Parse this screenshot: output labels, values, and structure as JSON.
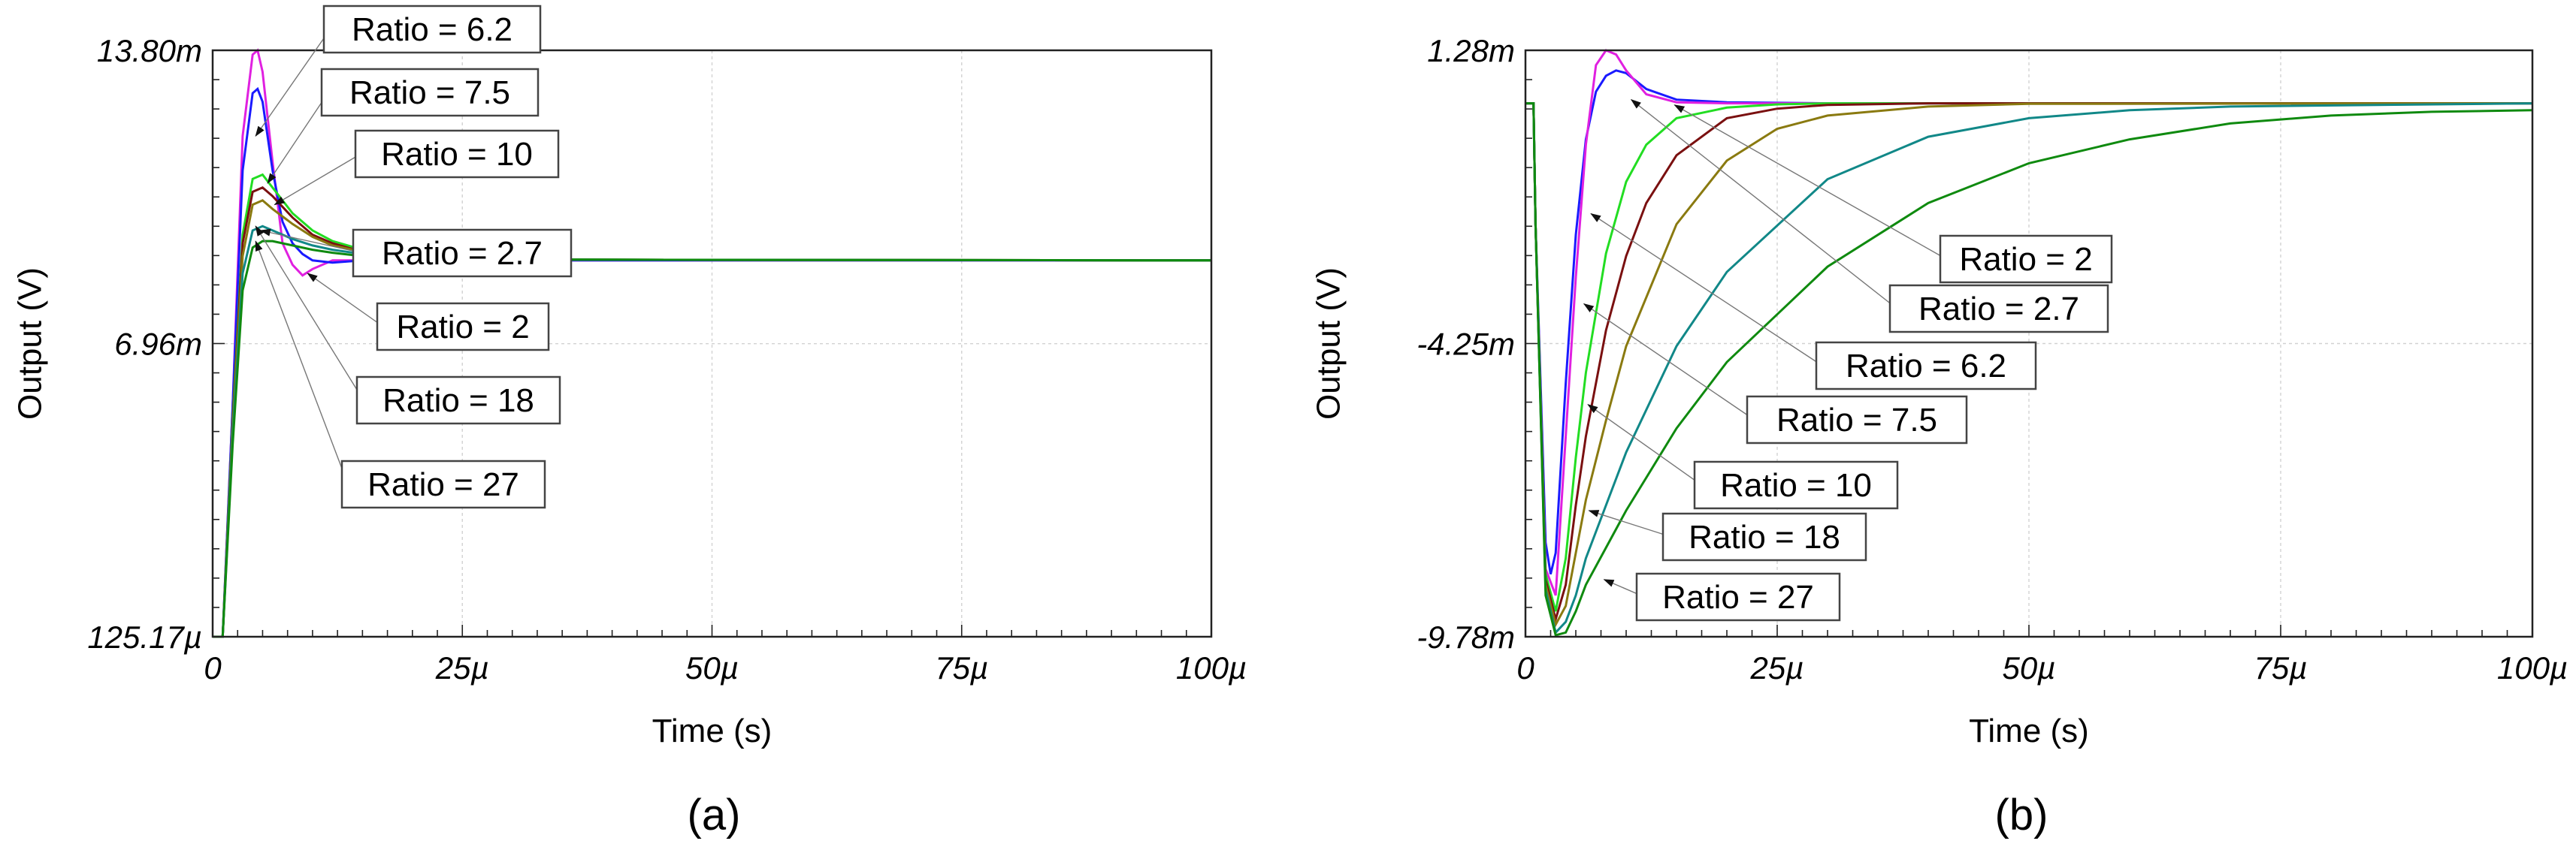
{
  "chart_data": [
    {
      "type": "line",
      "panel": "(a)",
      "xlabel": "Time (s)",
      "ylabel": "Output (V)",
      "xlim": [
        0,
        100
      ],
      "ylim": [
        0.12517,
        13.8
      ],
      "x_ticks": [
        0,
        25,
        50,
        75,
        100
      ],
      "x_tick_labels": [
        "0",
        "25µ",
        "50µ",
        "75µ",
        "100µ"
      ],
      "y_ticks": [
        0.12517,
        6.96,
        13.8
      ],
      "y_tick_labels": [
        "125.17µ",
        "6.96m",
        "13.80m"
      ],
      "grid": true,
      "series": [
        {
          "name": "Ratio = 2",
          "color": "#e020e0",
          "x": [
            0,
            1,
            2,
            3,
            4,
            4.5,
            5,
            6,
            7,
            8,
            9,
            10,
            12,
            15,
            20,
            30,
            100
          ],
          "y": [
            0.125,
            0.125,
            5.5,
            11.8,
            13.7,
            13.8,
            13.3,
            11.2,
            9.3,
            8.8,
            8.55,
            8.7,
            8.9,
            8.9,
            8.9,
            8.9,
            8.9
          ]
        },
        {
          "name": "Ratio = 2.7",
          "color": "#1a1aff",
          "x": [
            0,
            1,
            2,
            3,
            4,
            4.5,
            5,
            6,
            7,
            8,
            9,
            10,
            12,
            15,
            20,
            30,
            100
          ],
          "y": [
            0.125,
            0.125,
            5.5,
            11.0,
            12.8,
            12.9,
            12.6,
            11.0,
            9.8,
            9.3,
            9.05,
            8.9,
            8.85,
            8.9,
            8.9,
            8.9,
            8.9
          ]
        },
        {
          "name": "Ratio = 6.2",
          "color": "#22dd22",
          "x": [
            0,
            1,
            2,
            3,
            4,
            5,
            6,
            8,
            10,
            12,
            15,
            20,
            30,
            100
          ],
          "y": [
            0.125,
            0.125,
            5.2,
            9.5,
            10.8,
            10.9,
            10.6,
            10.0,
            9.6,
            9.35,
            9.15,
            9.0,
            8.92,
            8.9
          ]
        },
        {
          "name": "Ratio = 7.5",
          "color": "#7a1010",
          "x": [
            0,
            1,
            2,
            3,
            4,
            5,
            6,
            8,
            10,
            12,
            15,
            20,
            30,
            100
          ],
          "y": [
            0.125,
            0.125,
            5.1,
            9.3,
            10.5,
            10.6,
            10.4,
            9.9,
            9.5,
            9.3,
            9.1,
            9.0,
            8.92,
            8.9
          ]
        },
        {
          "name": "Ratio = 10",
          "color": "#8a7a10",
          "x": [
            0,
            1,
            2,
            3,
            4,
            5,
            6,
            8,
            10,
            12,
            15,
            20,
            30,
            100
          ],
          "y": [
            0.125,
            0.125,
            5.0,
            9.0,
            10.2,
            10.3,
            10.1,
            9.75,
            9.45,
            9.25,
            9.1,
            9.0,
            8.92,
            8.9
          ]
        },
        {
          "name": "Ratio = 18",
          "color": "#118888",
          "x": [
            0,
            1,
            2,
            3,
            4,
            5,
            6,
            8,
            10,
            12,
            15,
            20,
            30,
            100
          ],
          "y": [
            0.125,
            0.125,
            4.8,
            8.6,
            9.6,
            9.7,
            9.6,
            9.4,
            9.25,
            9.15,
            9.05,
            8.98,
            8.92,
            8.9
          ]
        },
        {
          "name": "Ratio = 27",
          "color": "#0f8a0f",
          "x": [
            0,
            1,
            2,
            3,
            4,
            5,
            6,
            8,
            10,
            12,
            15,
            20,
            30,
            100
          ],
          "y": [
            0.125,
            0.125,
            4.6,
            8.2,
            9.2,
            9.35,
            9.35,
            9.25,
            9.15,
            9.08,
            9.0,
            8.95,
            8.92,
            8.9
          ]
        }
      ],
      "annotations": [
        {
          "text": "Ratio = 6.2",
          "target_x": 4.3,
          "target_y": 11.8
        },
        {
          "text": "Ratio = 7.5",
          "target_x": 5.5,
          "target_y": 10.7
        },
        {
          "text": "Ratio = 10",
          "target_x": 6.2,
          "target_y": 10.2
        },
        {
          "text": "Ratio = 2.7",
          "target_x": 4.8,
          "target_y": 9.6
        },
        {
          "text": "Ratio = 2",
          "target_x": 9.5,
          "target_y": 8.6
        },
        {
          "text": "Ratio = 18",
          "target_x": 4.3,
          "target_y": 9.7
        },
        {
          "text": "Ratio = 27",
          "target_x": 4.3,
          "target_y": 9.35
        }
      ]
    },
    {
      "type": "line",
      "panel": "(b)",
      "xlabel": "Time (s)",
      "ylabel": "Output (V)",
      "xlim": [
        0,
        100
      ],
      "ylim": [
        -9.78,
        1.28
      ],
      "x_ticks": [
        0,
        25,
        50,
        75,
        100
      ],
      "x_tick_labels": [
        "0",
        "25µ",
        "50µ",
        "75µ",
        "100µ"
      ],
      "y_ticks": [
        -9.78,
        -4.25,
        1.28
      ],
      "y_tick_labels": [
        "-9.78m",
        "-4.25m",
        "1.28m"
      ],
      "grid": true,
      "series": [
        {
          "name": "Ratio = 2",
          "color": "#1a1aff",
          "x": [
            0,
            0.8,
            1,
            2,
            2.5,
            3,
            4,
            5,
            6,
            7,
            8,
            9,
            10,
            12,
            15,
            20,
            30,
            100
          ],
          "y": [
            0.28,
            0.28,
            -2.0,
            -8.0,
            -8.6,
            -8.2,
            -5.0,
            -2.2,
            -0.4,
            0.5,
            0.8,
            0.9,
            0.85,
            0.55,
            0.35,
            0.3,
            0.28,
            0.28
          ]
        },
        {
          "name": "Ratio = 2.7",
          "color": "#e020e0",
          "x": [
            0,
            0.8,
            1,
            2,
            3,
            4,
            5,
            6,
            7,
            8,
            9,
            10,
            12,
            15,
            20,
            100
          ],
          "y": [
            0.28,
            0.28,
            -2.0,
            -8.5,
            -9.0,
            -6.0,
            -3.0,
            -0.5,
            1.0,
            1.28,
            1.2,
            0.9,
            0.45,
            0.3,
            0.28,
            0.28
          ]
        },
        {
          "name": "Ratio = 6.2",
          "color": "#22dd22",
          "x": [
            0,
            0.8,
            1,
            2,
            3,
            4,
            5,
            6,
            8,
            10,
            12,
            15,
            20,
            25,
            30,
            40,
            100
          ],
          "y": [
            0.28,
            0.28,
            -2.0,
            -8.6,
            -9.3,
            -8.3,
            -6.4,
            -4.8,
            -2.55,
            -1.2,
            -0.5,
            0.0,
            0.2,
            0.26,
            0.28,
            0.28,
            0.28
          ]
        },
        {
          "name": "Ratio = 7.5",
          "color": "#7a1010",
          "x": [
            0,
            0.8,
            1,
            2,
            3,
            4,
            5,
            6,
            8,
            10,
            12,
            15,
            20,
            25,
            30,
            40,
            100
          ],
          "y": [
            0.28,
            0.28,
            -2.0,
            -8.7,
            -9.45,
            -8.8,
            -7.3,
            -6.0,
            -4.0,
            -2.6,
            -1.6,
            -0.7,
            0.0,
            0.18,
            0.25,
            0.28,
            0.28
          ]
        },
        {
          "name": "Ratio = 10",
          "color": "#8a7a10",
          "x": [
            0,
            0.8,
            1,
            2,
            3,
            4,
            5,
            6,
            8,
            10,
            15,
            20,
            25,
            30,
            40,
            50,
            100
          ],
          "y": [
            0.28,
            0.28,
            -2.0,
            -8.8,
            -9.55,
            -9.2,
            -8.2,
            -7.2,
            -5.7,
            -4.3,
            -2.0,
            -0.8,
            -0.2,
            0.05,
            0.22,
            0.27,
            0.28
          ]
        },
        {
          "name": "Ratio = 18",
          "color": "#118888",
          "x": [
            0,
            0.8,
            1,
            2,
            3,
            4,
            5,
            6,
            8,
            10,
            15,
            20,
            30,
            40,
            50,
            60,
            70,
            100
          ],
          "y": [
            0.28,
            0.28,
            -2.0,
            -8.9,
            -9.7,
            -9.5,
            -9.0,
            -8.3,
            -7.3,
            -6.3,
            -4.3,
            -2.9,
            -1.15,
            -0.35,
            0.0,
            0.15,
            0.22,
            0.28
          ]
        },
        {
          "name": "Ratio = 27",
          "color": "#0f8a0f",
          "x": [
            0,
            0.8,
            1,
            2,
            3,
            4,
            5,
            6,
            8,
            10,
            15,
            20,
            30,
            40,
            50,
            60,
            70,
            80,
            90,
            100
          ],
          "y": [
            0.28,
            0.28,
            -2.0,
            -9.0,
            -9.75,
            -9.7,
            -9.3,
            -8.8,
            -8.1,
            -7.4,
            -5.85,
            -4.6,
            -2.8,
            -1.6,
            -0.85,
            -0.4,
            -0.1,
            0.05,
            0.12,
            0.15
          ]
        }
      ],
      "annotations": [
        {
          "text": "Ratio = 2",
          "target_x": 14.8,
          "target_y": 0.25
        },
        {
          "text": "Ratio = 2.7",
          "target_x": 10.5,
          "target_y": 0.35
        },
        {
          "text": "Ratio = 6.2",
          "target_x": 6.5,
          "target_y": -1.8
        },
        {
          "text": "Ratio = 7.5",
          "target_x": 5.8,
          "target_y": -3.5
        },
        {
          "text": "Ratio = 10",
          "target_x": 6.2,
          "target_y": -5.4
        },
        {
          "text": "Ratio = 18",
          "target_x": 6.3,
          "target_y": -7.4
        },
        {
          "text": "Ratio = 27",
          "target_x": 7.8,
          "target_y": -8.7
        }
      ]
    }
  ]
}
